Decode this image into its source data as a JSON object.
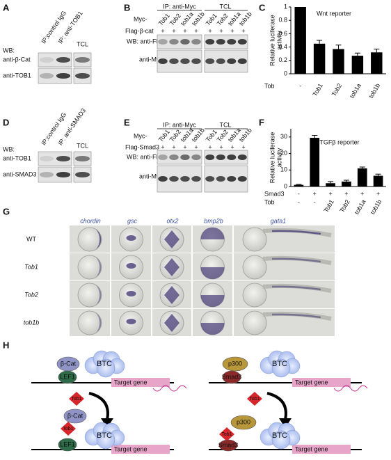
{
  "A": {
    "label": "A",
    "lanes": [
      "IP:control IgG",
      "IP: anti-TOB1",
      "TCL"
    ],
    "wb": "WB:",
    "rows": [
      "anti-β-Cat",
      "anti-TOB1"
    ]
  },
  "B": {
    "label": "B",
    "groups": [
      "IP: anti-Myc",
      "TCL"
    ],
    "myc": "Myc-",
    "lanes": [
      "Tob1",
      "Tob2",
      "tob1a",
      "tob1b",
      "Tob1",
      "Tob2",
      "tob1a",
      "tob1b"
    ],
    "flag": "Flag-β-cat",
    "plus": "+",
    "rows": [
      "WB: anti-Flag",
      "anti-Myc"
    ]
  },
  "D": {
    "label": "D",
    "lanes": [
      "IP:control IgG",
      "IP: anti-SMAD3",
      "TCL"
    ],
    "wb": "WB:",
    "rows": [
      "anti-TOB1",
      "anti-SMAD3"
    ]
  },
  "E": {
    "label": "E",
    "groups": [
      "IP: anti-Myc",
      "TCL"
    ],
    "myc": "Myc-",
    "lanes": [
      "Tob1",
      "Tob2",
      "tob1a",
      "tob1b",
      "Tob1",
      "Tob2",
      "tob1a",
      "tob1b"
    ],
    "flag": "Flag-Smad3",
    "plus": "+",
    "rows": [
      "WB: anti-Flag",
      "anti-Myc"
    ]
  },
  "chart_data": [
    {
      "type": "bar",
      "panel": "C",
      "title": "Wnt reporter",
      "y_label": [
        "Relative luciferase",
        "activity"
      ],
      "color": "#000000",
      "label_rows": [
        {
          "name": "Tob",
          "labels": [
            "-",
            "Tob1",
            "Tob2",
            "tob1a",
            "tob1b"
          ]
        }
      ],
      "values": [
        1,
        0.45,
        0.37,
        0.27,
        0.32
      ],
      "errors": [
        null,
        0.05,
        0.06,
        0.04,
        0.05
      ],
      "ylim": [
        0,
        1
      ],
      "yticks": [
        0,
        0.2,
        0.4,
        0.6,
        0.8,
        1
      ]
    },
    {
      "type": "bar",
      "panel": "F",
      "title": "TGFβ reporter",
      "y_label": [
        "Relative luciferase",
        "activity"
      ],
      "color": "#000000",
      "label_rows": [
        {
          "name": "Smad3",
          "labels": [
            "-",
            "+",
            "+",
            "+",
            "+",
            "+"
          ]
        },
        {
          "name": "Tob",
          "labels": [
            "-",
            "-",
            "Tob1",
            "Tob2",
            "tob1a",
            "tob1b"
          ]
        }
      ],
      "values": [
        1,
        29.5,
        2,
        3,
        11,
        6.5
      ],
      "errors": [
        0.3,
        1.5,
        1,
        0.8,
        0.8,
        1
      ],
      "ylim": [
        0,
        35
      ],
      "yticks": [
        0,
        10,
        20,
        30
      ]
    }
  ],
  "G": {
    "label": "G",
    "genes": [
      "chordin",
      "gsc",
      "otx2",
      "bmp2b",
      "gata1"
    ],
    "conditions": [
      "WT",
      "Tob1",
      "Tob2",
      "tob1b"
    ]
  },
  "H": {
    "label": "H",
    "left": {
      "beta_cat": "β-Cat",
      "btc": "BTC",
      "lef1": "LEF1",
      "target": "Target gene",
      "tob1": "Tob1"
    },
    "right": {
      "p300": "p300",
      "btc": "BTC",
      "smad3": "Smad3",
      "target": "Target gene",
      "tob1": "Tob1"
    }
  }
}
